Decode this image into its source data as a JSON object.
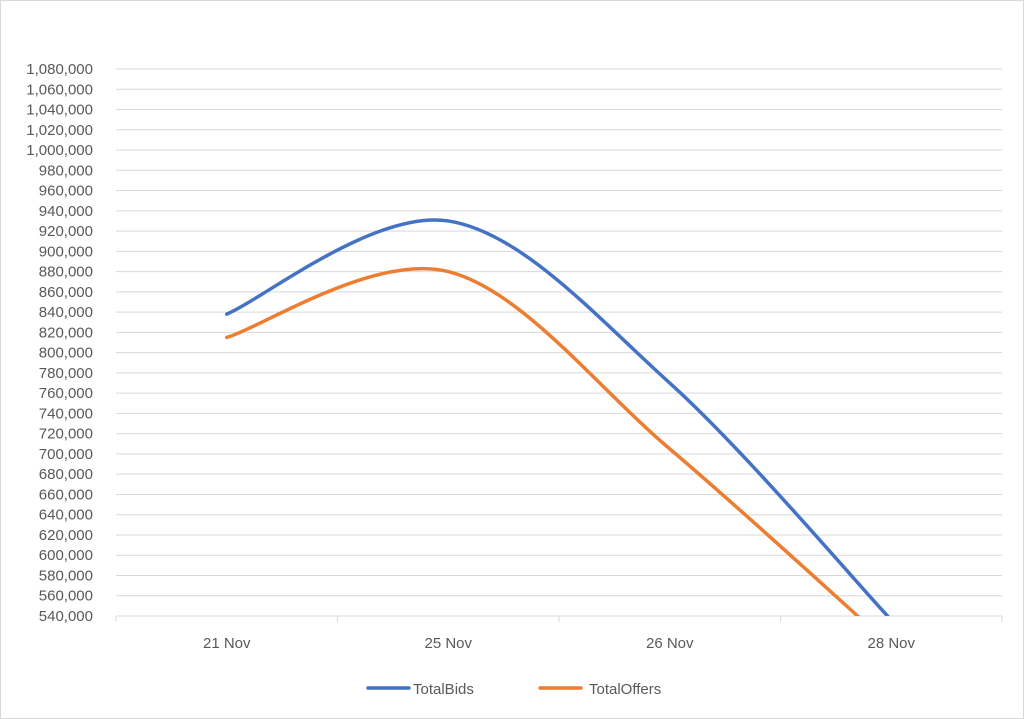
{
  "chart_data": {
    "type": "line",
    "categories": [
      "21 Nov",
      "25 Nov",
      "26 Nov",
      "28 Nov"
    ],
    "series": [
      {
        "name": "TotalBids",
        "color": "#4472C4",
        "values": [
          838000,
          930000,
          770000,
          536000
        ]
      },
      {
        "name": "TotalOffers",
        "color": "#ED7D31",
        "values": [
          815000,
          880000,
          705000,
          510000
        ]
      }
    ],
    "ylim": [
      540000,
      1080000
    ],
    "yticks": [
      540000,
      560000,
      580000,
      600000,
      620000,
      640000,
      660000,
      680000,
      700000,
      720000,
      740000,
      760000,
      780000,
      800000,
      820000,
      840000,
      860000,
      880000,
      900000,
      920000,
      940000,
      960000,
      980000,
      1000000,
      1020000,
      1040000,
      1060000,
      1080000
    ],
    "title": "",
    "xlabel": "",
    "ylabel": "",
    "grid": true,
    "legend": "bottom",
    "smooth": true
  }
}
